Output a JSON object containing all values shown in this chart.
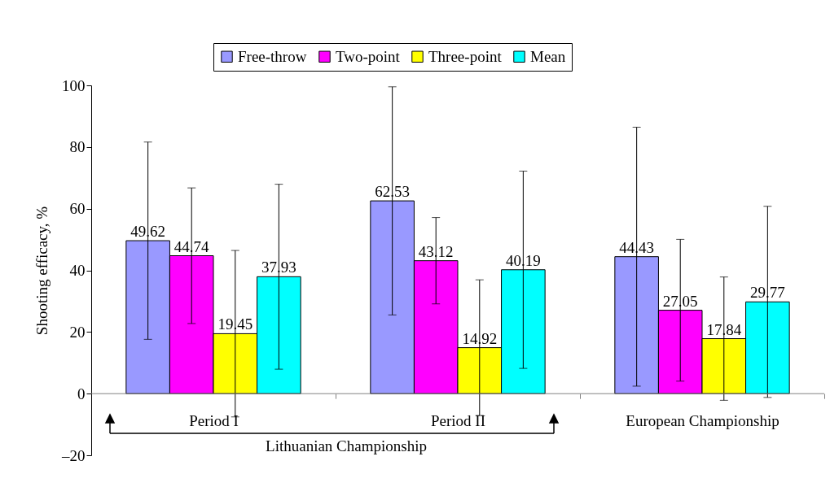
{
  "chart_data": {
    "type": "bar",
    "ylabel": "Shooting efficacy, %",
    "categories": [
      "Period I",
      "Period II",
      "European Championship"
    ],
    "series": [
      {
        "name": "Free-throw",
        "color": "#9999ff",
        "values": [
          49.62,
          62.53,
          44.43
        ],
        "errors": [
          32,
          37,
          42
        ]
      },
      {
        "name": "Two-point",
        "color": "#ff00ff",
        "values": [
          44.74,
          43.12,
          27.05
        ],
        "errors": [
          22,
          14,
          23
        ]
      },
      {
        "name": "Three-point",
        "color": "#ffff00",
        "values": [
          19.45,
          14.92,
          17.84
        ],
        "errors": [
          27,
          22,
          20
        ]
      },
      {
        "name": "Mean",
        "color": "#00ffff",
        "values": [
          37.93,
          40.19,
          29.77
        ],
        "errors": [
          30,
          32,
          31
        ]
      }
    ],
    "ylim": [
      -20,
      100
    ],
    "yticks": [
      {
        "value": -20,
        "label": "–20"
      },
      0,
      20,
      40,
      60,
      80,
      100
    ],
    "ref_lines": [
      {
        "axis": "y",
        "value": 0,
        "color": "#808080"
      }
    ],
    "data_labels": true,
    "legend": "top",
    "grid": false,
    "annotations": [
      "Lithuanian Championship"
    ]
  }
}
